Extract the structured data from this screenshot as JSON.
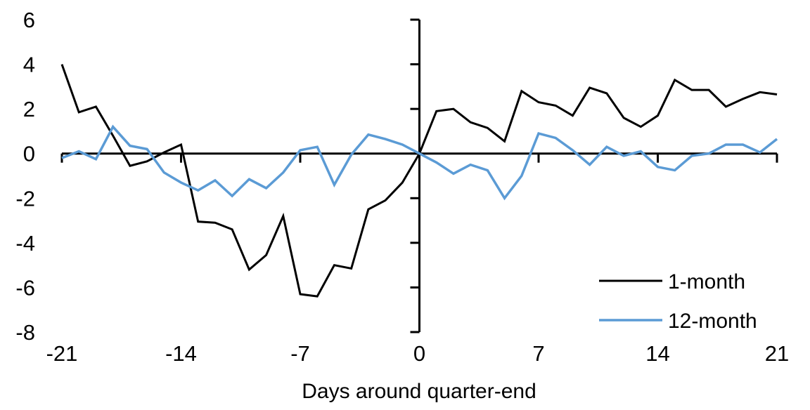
{
  "figure": {
    "background": "#ffffff",
    "axis_color": "#000000"
  },
  "chart_data": {
    "type": "line",
    "title": "",
    "xlabel": "Days around quarter-end",
    "ylabel": "",
    "xlim": [
      -21,
      21
    ],
    "ylim": [
      -8,
      6
    ],
    "x_ticks": [
      -21,
      -14,
      -7,
      0,
      7,
      14,
      21
    ],
    "y_ticks": [
      6,
      4,
      2,
      0,
      -2,
      -4,
      -6,
      -8
    ],
    "grid": false,
    "legend_position": "lower right",
    "x": [
      -21,
      -20,
      -19,
      -18,
      -17,
      -16,
      -15,
      -14,
      -13,
      -12,
      -11,
      -10,
      -9,
      -8,
      -7,
      -6,
      -5,
      -4,
      -3,
      -2,
      -1,
      0,
      1,
      2,
      3,
      4,
      5,
      6,
      7,
      8,
      9,
      10,
      11,
      12,
      13,
      14,
      15,
      16,
      17,
      18,
      19,
      20,
      21
    ],
    "series": [
      {
        "name": "1-month",
        "color": "#000000",
        "values": [
          4.0,
          1.85,
          2.1,
          0.8,
          -0.55,
          -0.35,
          0.05,
          0.4,
          -3.05,
          -3.1,
          -3.4,
          -5.2,
          -4.55,
          -2.8,
          -6.3,
          -6.4,
          -5.0,
          -5.15,
          -2.5,
          -2.1,
          -1.3,
          0.0,
          1.9,
          2.0,
          1.4,
          1.15,
          0.55,
          2.8,
          2.3,
          2.15,
          1.7,
          2.95,
          2.7,
          1.6,
          1.2,
          1.7,
          3.3,
          2.85,
          2.85,
          2.1,
          2.45,
          2.75,
          2.65
        ]
      },
      {
        "name": "12-month",
        "color": "#5b9bd5",
        "values": [
          -0.2,
          0.1,
          -0.25,
          1.2,
          0.35,
          0.2,
          -0.85,
          -1.3,
          -1.65,
          -1.2,
          -1.9,
          -1.15,
          -1.55,
          -0.85,
          0.15,
          0.3,
          -1.4,
          -0.05,
          0.85,
          0.65,
          0.4,
          0.0,
          -0.4,
          -0.9,
          -0.5,
          -0.75,
          -2.0,
          -1.0,
          0.9,
          0.7,
          0.15,
          -0.5,
          0.3,
          -0.1,
          0.1,
          -0.6,
          -0.75,
          -0.1,
          0.0,
          0.4,
          0.4,
          0.05,
          0.65
        ]
      }
    ]
  }
}
